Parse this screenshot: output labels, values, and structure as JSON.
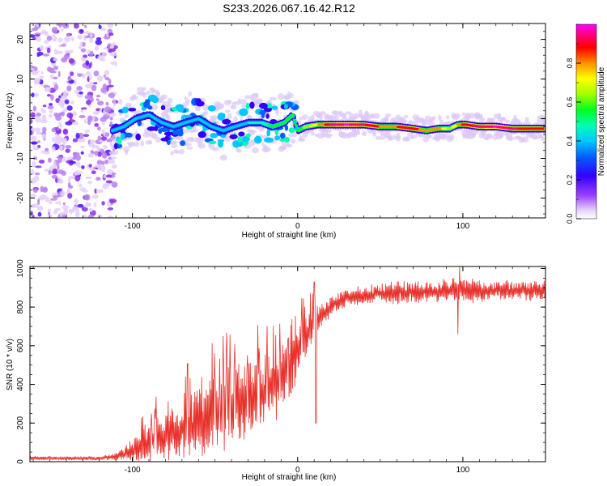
{
  "title": "S233.2026.067.16.42.R12",
  "chart_data": [
    {
      "type": "heatmap",
      "panel": "spectrogram",
      "xlabel": "Height of straight line (km)",
      "ylabel": "Frequency (Hz)",
      "xlim": [
        -162,
        150
      ],
      "ylim": [
        -25,
        24
      ],
      "xticks": [
        -100,
        0,
        100
      ],
      "xtick_labels": [
        "-100",
        "0",
        "100"
      ],
      "yticks": [
        20,
        10,
        0,
        -10,
        -20
      ],
      "ytick_labels": [
        "20",
        "10",
        "0",
        "-10",
        "-20"
      ],
      "colorbar": {
        "label": "Normalized spectral amplitude",
        "range": [
          0,
          1
        ],
        "ticks": [
          0.0,
          0.2,
          0.4,
          0.6,
          0.8
        ],
        "tick_labels": [
          "0.0",
          "0.2",
          "0.4",
          "0.6",
          "0.8"
        ],
        "colors": [
          "#e8d8f8",
          "#8a2be2",
          "#3300ff",
          "#0044ff",
          "#00c0ff",
          "#00ffb0",
          "#00ff00",
          "#b0ff00",
          "#ffff00",
          "#ff8000",
          "#ff0000",
          "#ff0080",
          "#ff00ff"
        ]
      },
      "ridge": {
        "x": [
          -112,
          -105,
          -98,
          -90,
          -82,
          -75,
          -68,
          -60,
          -52,
          -45,
          -38,
          -30,
          -22,
          -15,
          -8,
          -3,
          0,
          5,
          12,
          20,
          30,
          40,
          50,
          60,
          70,
          78,
          85,
          92,
          97,
          102,
          110,
          120,
          130,
          140,
          150
        ],
        "freq": [
          -3,
          -2,
          0,
          1,
          -1,
          -2,
          -1,
          0,
          -2,
          -3,
          -2,
          -1,
          -1,
          -2,
          -1,
          1,
          -3,
          -2,
          -1.5,
          -1.5,
          -1.5,
          -1.5,
          -2,
          -2,
          -2.5,
          -3,
          -2.5,
          -2.5,
          -1.5,
          -1.5,
          -2,
          -2,
          -2.5,
          -2.5,
          -2.5
        ],
        "amp": [
          0.35,
          0.4,
          0.4,
          0.38,
          0.35,
          0.36,
          0.4,
          0.38,
          0.35,
          0.33,
          0.35,
          0.4,
          0.45,
          0.5,
          0.55,
          0.5,
          0.5,
          0.6,
          0.7,
          0.9,
          0.95,
          0.9,
          0.8,
          0.8,
          0.85,
          0.75,
          0.8,
          0.6,
          0.75,
          0.85,
          0.9,
          0.95,
          0.9,
          0.85,
          0.8
        ]
      },
      "noise_region_x": [
        -162,
        -110
      ]
    },
    {
      "type": "line",
      "panel": "snr",
      "xlabel": "Height of straight line (km)",
      "ylabel": "SNR (10 * v/v)",
      "xlim": [
        -162,
        150
      ],
      "ylim": [
        0,
        1010
      ],
      "xticks": [
        -100,
        0,
        100
      ],
      "xtick_labels": [
        "-100",
        "0",
        "100"
      ],
      "yticks": [
        0,
        200,
        400,
        600,
        800,
        1000
      ],
      "ytick_labels": [
        "0",
        "200",
        "400",
        "600",
        "800",
        "1000"
      ],
      "series": [
        {
          "name": "SNR",
          "color": "#e8322c",
          "envelope_x": [
            -162,
            -140,
            -120,
            -110,
            -105,
            -100,
            -95,
            -90,
            -80,
            -70,
            -60,
            -50,
            -40,
            -30,
            -20,
            -10,
            -5,
            0,
            5,
            10,
            15,
            20,
            25,
            30,
            40,
            50,
            60,
            70,
            80,
            90,
            95,
            100,
            110,
            120,
            130,
            140,
            150
          ],
          "envelope_base": [
            18,
            18,
            18,
            25,
            40,
            60,
            80,
            100,
            130,
            160,
            190,
            230,
            270,
            320,
            370,
            430,
            480,
            560,
            650,
            720,
            770,
            800,
            830,
            850,
            860,
            870,
            875,
            880,
            880,
            885,
            885,
            885,
            885,
            885,
            885,
            885,
            885
          ],
          "envelope_amp": [
            8,
            8,
            8,
            15,
            30,
            60,
            70,
            80,
            110,
            130,
            150,
            170,
            170,
            160,
            150,
            140,
            130,
            110,
            90,
            70,
            50,
            40,
            40,
            40,
            40,
            40,
            45,
            45,
            45,
            45,
            50,
            50,
            45,
            40,
            40,
            40,
            40
          ],
          "features": [
            {
              "x": 10,
              "value": 930
            },
            {
              "x": 11,
              "value": 200
            },
            {
              "x": 97,
              "value": 660
            },
            {
              "x": 98,
              "value": 1010
            }
          ]
        }
      ]
    }
  ]
}
